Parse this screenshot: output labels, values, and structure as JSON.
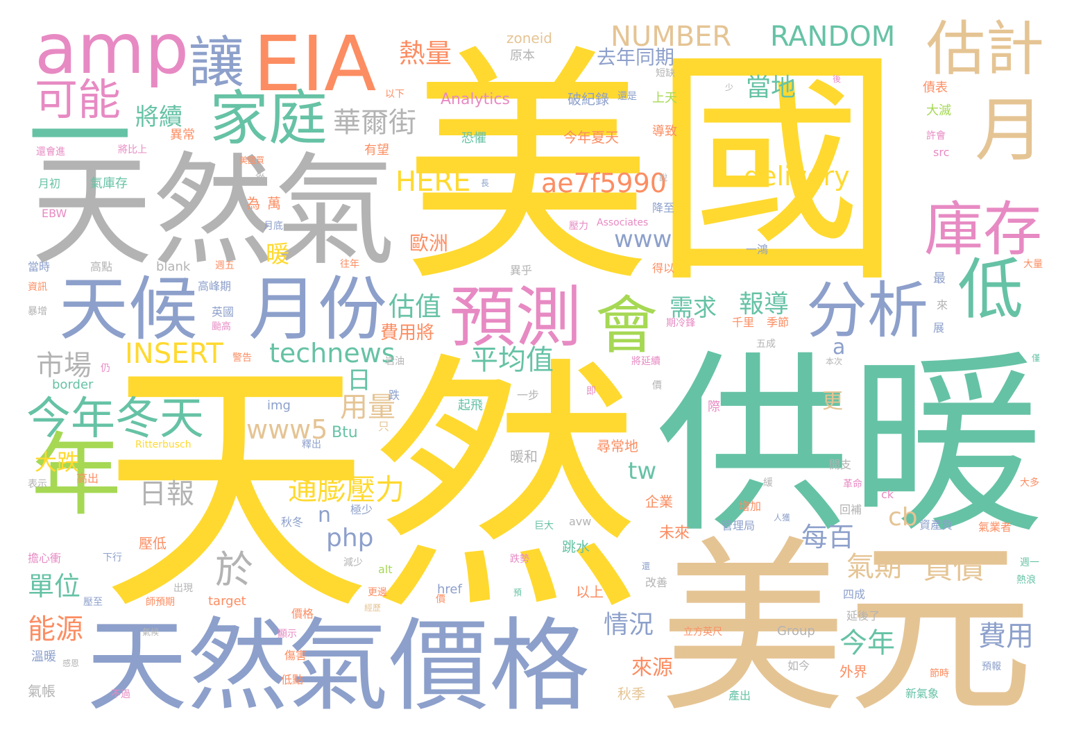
{
  "words": [
    {
      "text": "美國",
      "color": "#ffd92f"
    },
    {
      "text": "天然",
      "color": "#ffd92f"
    },
    {
      "text": "供暖",
      "color": "#66c2a5"
    },
    {
      "text": "美元",
      "color": "#e5c494"
    },
    {
      "text": "天然氣",
      "color": "#b3b3b3"
    },
    {
      "text": "天然氣價格",
      "color": "#8da0cb"
    },
    {
      "text": "EIA",
      "color": "#fc8d62"
    },
    {
      "text": "amp",
      "color": "#e78ac3"
    },
    {
      "text": "讓",
      "color": "#8da0cb"
    },
    {
      "text": "估計",
      "color": "#e5c494"
    },
    {
      "text": "月",
      "color": "#e5c494"
    },
    {
      "text": "家庭",
      "color": "#66c2a5"
    },
    {
      "text": "一",
      "color": "#66c2a5"
    },
    {
      "text": "可能",
      "color": "#e78ac3"
    },
    {
      "text": "天候",
      "color": "#8da0cb"
    },
    {
      "text": "月份",
      "color": "#8da0cb"
    },
    {
      "text": "預測",
      "color": "#e78ac3"
    },
    {
      "text": "會",
      "color": "#a6d854"
    },
    {
      "text": "分析",
      "color": "#8da0cb"
    },
    {
      "text": "低",
      "color": "#66c2a5"
    },
    {
      "text": "庫存",
      "color": "#e78ac3"
    },
    {
      "text": "年",
      "color": "#a6d854"
    },
    {
      "text": "今年冬天",
      "color": "#66c2a5"
    },
    {
      "text": "市場",
      "color": "#b3b3b3"
    },
    {
      "text": "INSERT",
      "color": "#ffd92f"
    },
    {
      "text": "technews",
      "color": "#66c2a5"
    },
    {
      "text": "估值",
      "color": "#66c2a5"
    },
    {
      "text": "平均值",
      "color": "#66c2a5"
    },
    {
      "text": "日",
      "color": "#66c2a5"
    },
    {
      "text": "用量",
      "color": "#e5c494"
    },
    {
      "text": "www5",
      "color": "#e5c494"
    },
    {
      "text": "Btu",
      "color": "#66c2a5"
    },
    {
      "text": "大跌",
      "color": "#ffd92f"
    },
    {
      "text": "日報",
      "color": "#b3b3b3"
    },
    {
      "text": "通膨壓力",
      "color": "#ffd92f"
    },
    {
      "text": "n",
      "color": "#8da0cb"
    },
    {
      "text": "php",
      "color": "#8da0cb"
    },
    {
      "text": "於",
      "color": "#b3b3b3"
    },
    {
      "text": "單位",
      "color": "#66c2a5"
    },
    {
      "text": "能源",
      "color": "#fc8d62"
    },
    {
      "text": "氣帳",
      "color": "#b3b3b3"
    },
    {
      "text": "溫暖",
      "color": "#8da0cb"
    },
    {
      "text": "將續",
      "color": "#66c2a5"
    },
    {
      "text": "華爾街",
      "color": "#b3b3b3"
    },
    {
      "text": "熱量",
      "color": "#fc8d62"
    },
    {
      "text": "NUMBER",
      "color": "#e5c494"
    },
    {
      "text": "RANDOM",
      "color": "#66c2a5"
    },
    {
      "text": "去年同期",
      "color": "#8da0cb"
    },
    {
      "text": "當地",
      "color": "#66c2a5"
    },
    {
      "text": "zoneid",
      "color": "#e5c494"
    },
    {
      "text": "原本",
      "color": "#b3b3b3"
    },
    {
      "text": "Analytics",
      "color": "#e78ac3"
    },
    {
      "text": "破紀錄",
      "color": "#8da0cb"
    },
    {
      "text": "HERE",
      "color": "#ffd92f"
    },
    {
      "text": "ae7f5990",
      "color": "#fc8d62"
    },
    {
      "text": "delivery",
      "color": "#ffd92f"
    },
    {
      "text": "www",
      "color": "#8da0cb"
    },
    {
      "text": "暖",
      "color": "#ffd92f"
    },
    {
      "text": "歐洲",
      "color": "#fc8d62"
    },
    {
      "text": "為",
      "color": "#fc8d62"
    },
    {
      "text": "萬",
      "color": "#fc8d62"
    },
    {
      "text": "需求",
      "color": "#66c2a5"
    },
    {
      "text": "報導",
      "color": "#66c2a5"
    },
    {
      "text": "費用將",
      "color": "#fc8d62"
    },
    {
      "text": "更",
      "color": "#e5c494"
    },
    {
      "text": "a",
      "color": "#8da0cb"
    },
    {
      "text": "tw",
      "color": "#66c2a5"
    },
    {
      "text": "cb",
      "color": "#e5c494"
    },
    {
      "text": "每百",
      "color": "#8da0cb"
    },
    {
      "text": "氣期",
      "color": "#e5c494"
    },
    {
      "text": "貨價",
      "color": "#e5c494"
    },
    {
      "text": "費用",
      "color": "#8da0cb"
    },
    {
      "text": "今年",
      "color": "#66c2a5"
    },
    {
      "text": "情況",
      "color": "#8da0cb"
    },
    {
      "text": "來源",
      "color": "#fc8d62"
    },
    {
      "text": "外界",
      "color": "#fc8d62"
    },
    {
      "text": "秋季",
      "color": "#e5c494"
    },
    {
      "text": "以上",
      "color": "#fc8d62"
    },
    {
      "text": "跳水",
      "color": "#66c2a5"
    },
    {
      "text": "未來",
      "color": "#fc8d62"
    },
    {
      "text": "企業",
      "color": "#fc8d62"
    },
    {
      "text": "尋常地",
      "color": "#fc8d62"
    },
    {
      "text": "暖和",
      "color": "#b3b3b3"
    },
    {
      "text": "起飛",
      "color": "#66c2a5"
    },
    {
      "text": "一步",
      "color": "#b3b3b3"
    },
    {
      "text": "恐懼",
      "color": "#66c2a5"
    },
    {
      "text": "今年夏天",
      "color": "#fc8d62"
    },
    {
      "text": "導致",
      "color": "#fc8d62"
    },
    {
      "text": "上天",
      "color": "#a6d854"
    },
    {
      "text": "還是",
      "color": "#8da0cb"
    },
    {
      "text": "短缺",
      "color": "#b3b3b3"
    },
    {
      "text": "有望",
      "color": "#fc8d62"
    },
    {
      "text": "以下",
      "color": "#fc8d62"
    },
    {
      "text": "異常",
      "color": "#fc8d62"
    },
    {
      "text": "還會進",
      "color": "#e78ac3"
    },
    {
      "text": "將比上",
      "color": "#e78ac3"
    },
    {
      "text": "月初",
      "color": "#66c2a5"
    },
    {
      "text": "氣庫存",
      "color": "#66c2a5"
    },
    {
      "text": "從",
      "color": "#b3b3b3"
    },
    {
      "text": "EBW",
      "color": "#e78ac3"
    },
    {
      "text": "月底",
      "color": "#8da0cb"
    },
    {
      "text": "降至",
      "color": "#8da0cb"
    },
    {
      "text": "壓力",
      "color": "#e78ac3"
    },
    {
      "text": "Associates",
      "color": "#e78ac3"
    },
    {
      "text": "一鴻",
      "color": "#8da0cb"
    },
    {
      "text": "大滅",
      "color": "#a6d854"
    },
    {
      "text": "債表",
      "color": "#fc8d62"
    },
    {
      "text": "許會",
      "color": "#e78ac3"
    },
    {
      "text": "src",
      "color": "#e78ac3"
    },
    {
      "text": "當時",
      "color": "#8da0cb"
    },
    {
      "text": "高點",
      "color": "#b3b3b3"
    },
    {
      "text": "blank",
      "color": "#b3b3b3"
    },
    {
      "text": "週五",
      "color": "#fc8d62"
    },
    {
      "text": "高峰期",
      "color": "#8da0cb"
    },
    {
      "text": "英國",
      "color": "#8da0cb"
    },
    {
      "text": "颱高",
      "color": "#e78ac3"
    },
    {
      "text": "資訊",
      "color": "#fc8d62"
    },
    {
      "text": "暴增",
      "color": "#b3b3b3"
    },
    {
      "text": "往年",
      "color": "#fc8d62"
    },
    {
      "text": "異乎",
      "color": "#b3b3b3"
    },
    {
      "text": "得以",
      "color": "#fc8d62"
    },
    {
      "text": "大量",
      "color": "#fc8d62"
    },
    {
      "text": "最",
      "color": "#8da0cb"
    },
    {
      "text": "來",
      "color": "#b3b3b3"
    },
    {
      "text": "展",
      "color": "#8da0cb"
    },
    {
      "text": "千里",
      "color": "#fc8d62"
    },
    {
      "text": "季節",
      "color": "#fc8d62"
    },
    {
      "text": "期冷鋒",
      "color": "#e78ac3"
    },
    {
      "text": "五成",
      "color": "#b3b3b3"
    },
    {
      "text": "本次",
      "color": "#b3b3b3"
    },
    {
      "text": "將延續",
      "color": "#e78ac3"
    },
    {
      "text": "警告",
      "color": "#fc8d62"
    },
    {
      "text": "岩油",
      "color": "#b3b3b3"
    },
    {
      "text": "仍",
      "color": "#e78ac3"
    },
    {
      "text": "border",
      "color": "#66c2a5"
    },
    {
      "text": "img",
      "color": "#8da0cb"
    },
    {
      "text": "跌",
      "color": "#8da0cb"
    },
    {
      "text": "只",
      "color": "#e5c494"
    },
    {
      "text": "即",
      "color": "#e78ac3"
    },
    {
      "text": "價",
      "color": "#b3b3b3"
    },
    {
      "text": "際",
      "color": "#e78ac3"
    },
    {
      "text": "Ritterbusch",
      "color": "#ffd92f"
    },
    {
      "text": "釋出",
      "color": "#8da0cb"
    },
    {
      "text": "表示",
      "color": "#b3b3b3"
    },
    {
      "text": "高出",
      "color": "#fc8d62"
    },
    {
      "text": "回補",
      "color": "#b3b3b3"
    },
    {
      "text": "革命",
      "color": "#e78ac3"
    },
    {
      "text": "開支",
      "color": "#b3b3b3"
    },
    {
      "text": "ck",
      "color": "#e78ac3"
    },
    {
      "text": "大多",
      "color": "#fc8d62"
    },
    {
      "text": "極少",
      "color": "#8da0cb"
    },
    {
      "text": "增加",
      "color": "#fc8d62"
    },
    {
      "text": "人獲",
      "color": "#8da0cb"
    },
    {
      "text": "秋冬",
      "color": "#8da0cb"
    },
    {
      "text": "壓低",
      "color": "#fc8d62"
    },
    {
      "text": "avw",
      "color": "#b3b3b3"
    },
    {
      "text": "巨大",
      "color": "#66c2a5"
    },
    {
      "text": "管理局",
      "color": "#8da0cb"
    },
    {
      "text": "資產負",
      "color": "#8da0cb"
    },
    {
      "text": "氣業者",
      "color": "#fc8d62"
    },
    {
      "text": "擔心衝",
      "color": "#e78ac3"
    },
    {
      "text": "下行",
      "color": "#8da0cb"
    },
    {
      "text": "alt",
      "color": "#a6d854"
    },
    {
      "text": "減少",
      "color": "#b3b3b3"
    },
    {
      "text": "跌勢",
      "color": "#e78ac3"
    },
    {
      "text": "還",
      "color": "#8da0cb"
    },
    {
      "text": "改善",
      "color": "#b3b3b3"
    },
    {
      "text": "週一",
      "color": "#66c2a5"
    },
    {
      "text": "熱浪",
      "color": "#66c2a5"
    },
    {
      "text": "出現",
      "color": "#b3b3b3"
    },
    {
      "text": "壓至",
      "color": "#8da0cb"
    },
    {
      "text": "師預期",
      "color": "#fc8d62"
    },
    {
      "text": "target",
      "color": "#fc8d62"
    },
    {
      "text": "href",
      "color": "#8da0cb"
    },
    {
      "text": "更邊",
      "color": "#fc8d62"
    },
    {
      "text": "預",
      "color": "#66c2a5"
    },
    {
      "text": "價",
      "color": "#fc8d62"
    },
    {
      "text": "經歷",
      "color": "#e5c494"
    },
    {
      "text": "四成",
      "color": "#8da0cb"
    },
    {
      "text": "價格",
      "color": "#fc8d62"
    },
    {
      "text": "延後了",
      "color": "#b3b3b3"
    },
    {
      "text": "Group",
      "color": "#b3b3b3"
    },
    {
      "text": "立方英尺",
      "color": "#fc8d62"
    },
    {
      "text": "顯示",
      "color": "#e78ac3"
    },
    {
      "text": "氣候",
      "color": "#b3b3b3"
    },
    {
      "text": "感恩",
      "color": "#b3b3b3"
    },
    {
      "text": "傷害",
      "color": "#fc8d62"
    },
    {
      "text": "如今",
      "color": "#b3b3b3"
    },
    {
      "text": "節時",
      "color": "#fc8d62"
    },
    {
      "text": "預報",
      "color": "#8da0cb"
    },
    {
      "text": "低點",
      "color": "#fc8d62"
    },
    {
      "text": "不過",
      "color": "#e78ac3"
    },
    {
      "text": "產出",
      "color": "#66c2a5"
    },
    {
      "text": "新氣象",
      "color": "#66c2a5"
    },
    {
      "text": "少",
      "color": "#b3b3b3"
    },
    {
      "text": "後",
      "color": "#e78ac3"
    },
    {
      "text": "長",
      "color": "#8da0cb"
    },
    {
      "text": "說",
      "color": "#b3b3b3"
    },
    {
      "text": "美國買",
      "color": "#fc8d62"
    },
    {
      "text": "僅",
      "color": "#66c2a5"
    },
    {
      "text": "緩",
      "color": "#b3b3b3"
    }
  ]
}
